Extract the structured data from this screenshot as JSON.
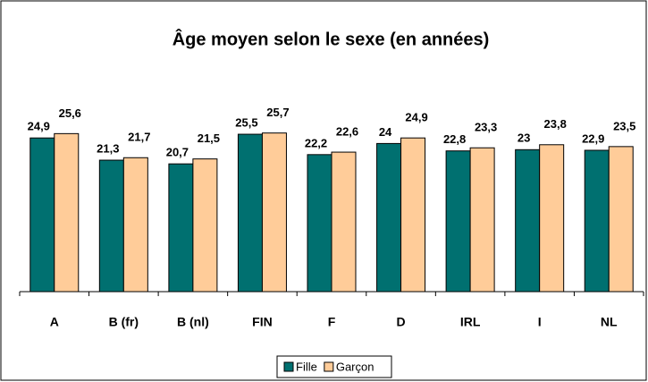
{
  "chart_data": {
    "type": "bar",
    "title": "Âge moyen selon le sexe (en années)",
    "categories": [
      "A",
      "B (fr)",
      "B (nl)",
      "FIN",
      "F",
      "D",
      "IRL",
      "I",
      "NL"
    ],
    "series": [
      {
        "name": "Fille",
        "color": "#007070",
        "values": [
          24.9,
          21.3,
          20.7,
          25.5,
          22.2,
          24,
          22.8,
          23,
          22.9
        ],
        "value_labels": [
          "24,9",
          "21,3",
          "20,7",
          "25,5",
          "22,2",
          "24",
          "22,8",
          "23",
          "22,9"
        ]
      },
      {
        "name": "Garçon",
        "color": "#FFCC99",
        "values": [
          25.6,
          21.7,
          21.5,
          25.7,
          22.6,
          24.9,
          23.3,
          23.8,
          23.5
        ],
        "value_labels": [
          "25,6",
          "21,7",
          "21,5",
          "25,7",
          "22,6",
          "24,9",
          "23,3",
          "23,8",
          "23,5"
        ]
      }
    ],
    "ylim": [
      0,
      30
    ],
    "legend": "bottom"
  }
}
